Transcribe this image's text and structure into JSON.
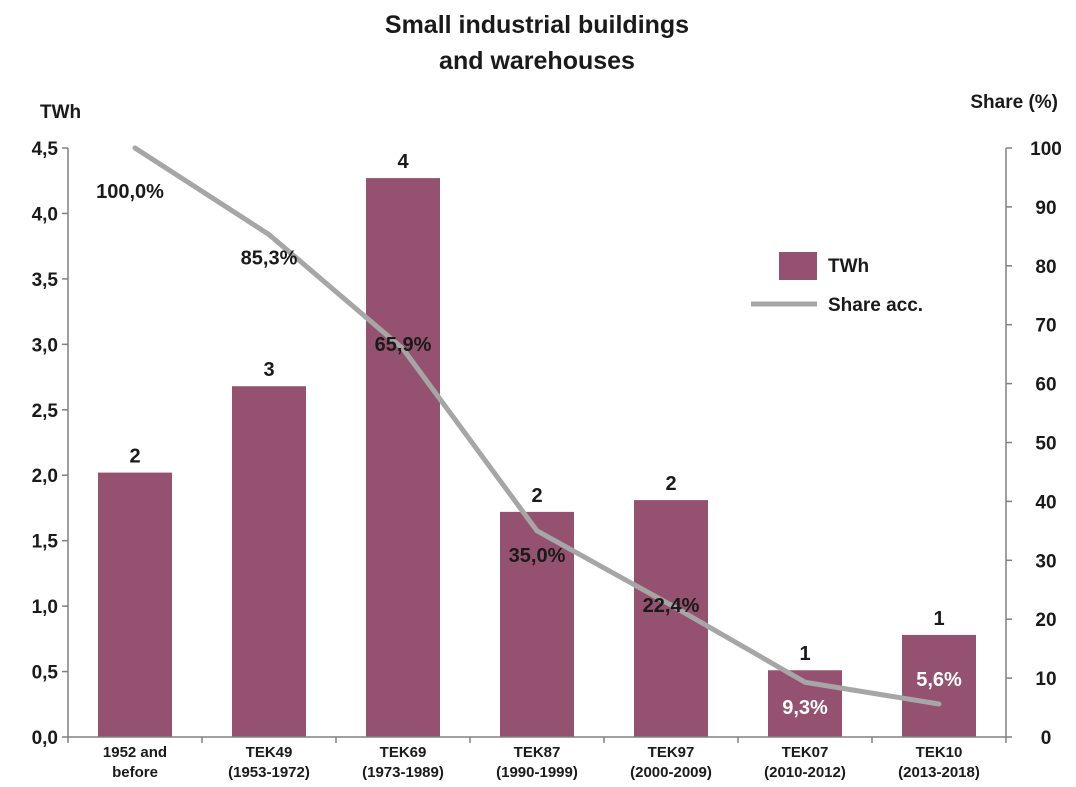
{
  "chart_data": {
    "type": "bar",
    "title": [
      "Small industrial buildings",
      "and warehouses"
    ],
    "ylabel_left": "TWh",
    "ylabel_right": "Share (%)",
    "categories": [
      [
        "1952 and",
        "before"
      ],
      [
        "TEK49",
        "(1953-1972)"
      ],
      [
        "TEK69",
        "(1973-1989)"
      ],
      [
        "TEK87",
        "(1990-1999)"
      ],
      [
        "TEK97",
        "(2000-2009)"
      ],
      [
        "TEK07",
        "(2010-2012)"
      ],
      [
        "TEK10",
        "(2013-2018)"
      ]
    ],
    "y_left_ticks": [
      "0,0",
      "0,5",
      "1,0",
      "1,5",
      "2,0",
      "2,5",
      "3,0",
      "3,5",
      "4,0",
      "4,5"
    ],
    "y_right_ticks": [
      "0",
      "10",
      "20",
      "30",
      "40",
      "50",
      "60",
      "70",
      "80",
      "90",
      "100"
    ],
    "ylim_left": [
      0,
      4.5
    ],
    "ylim_right": [
      0,
      100
    ],
    "series": [
      {
        "name": "TWh",
        "type": "bar",
        "axis": "left",
        "color": "#955270",
        "values": [
          2.02,
          2.68,
          4.27,
          1.72,
          1.81,
          0.51,
          0.78
        ],
        "labels": [
          "2",
          "3",
          "4",
          "2",
          "2",
          "1",
          "1"
        ]
      },
      {
        "name": "Share acc.",
        "type": "line",
        "axis": "right",
        "color": "#a6a6a6",
        "values": [
          100.0,
          85.3,
          65.9,
          35.0,
          22.4,
          9.3,
          5.6
        ],
        "labels": [
          "100,0%",
          "85,3%",
          "65,9%",
          "35,0%",
          "22,4%",
          "9,3%",
          "5,6%"
        ]
      }
    ],
    "legend": {
      "placement": "right"
    },
    "grid": false
  }
}
